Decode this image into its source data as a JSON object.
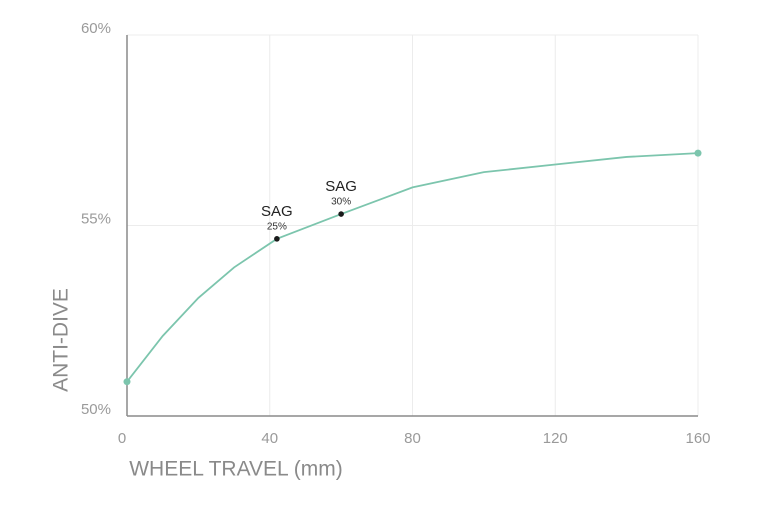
{
  "chart_data": {
    "type": "line",
    "x_label": "WHEEL TRAVEL (mm)",
    "y_label": "ANTI-DIVE",
    "x": [
      0,
      10,
      20,
      30,
      42,
      60,
      80,
      100,
      120,
      140,
      160
    ],
    "series": [
      {
        "name": "Anti-dive",
        "color": "#7cc5ad",
        "values": [
          50.9,
          52.1,
          53.1,
          53.9,
          54.65,
          55.3,
          56.0,
          56.4,
          56.6,
          56.8,
          56.9
        ]
      }
    ],
    "xlim": [
      0,
      160
    ],
    "xticks": [
      0,
      40,
      80,
      120,
      160
    ],
    "ylim": [
      50,
      60
    ],
    "yticks": [
      {
        "value": 50,
        "label": "50%"
      },
      {
        "value": 55,
        "label": "55%"
      },
      {
        "value": 60,
        "label": "60%"
      }
    ],
    "grid": true,
    "annotations": [
      {
        "x": 42,
        "y": 54.65,
        "label": "SAG",
        "sublabel": "25%"
      },
      {
        "x": 60,
        "y": 55.3,
        "label": "SAG",
        "sublabel": "30%"
      }
    ]
  }
}
